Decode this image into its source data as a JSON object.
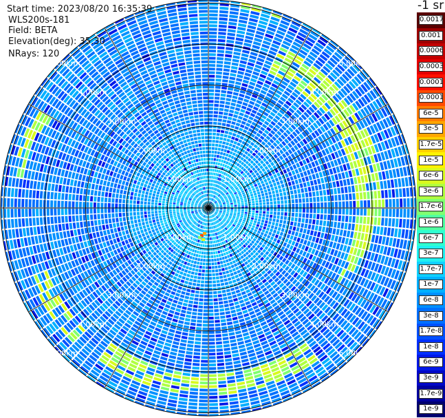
{
  "header": {
    "start_time": "Start time: 2023/08/20 16:35:39",
    "instrument": "WLS200s-181",
    "field": "Field: BETA",
    "elevation": "Elevation(deg): 35.30",
    "nrays": "NRays: 120"
  },
  "colorbar": {
    "unit": "-1 sr",
    "levels": [
      {
        "label": "0.0017",
        "color": "#5a0000"
      },
      {
        "label": "0.001",
        "color": "#9e0000"
      },
      {
        "label": "0.0006",
        "color": "#c40000"
      },
      {
        "label": "0.0003",
        "color": "#e40000"
      },
      {
        "label": "0.00017",
        "color": "#ff1000"
      },
      {
        "label": "0.0001",
        "color": "#ff4a00"
      },
      {
        "label": "6e-5",
        "color": "#ff7c00"
      },
      {
        "label": "3e-5",
        "color": "#ffa600"
      },
      {
        "label": "1.7e-5",
        "color": "#ffd000"
      },
      {
        "label": "1e-5",
        "color": "#fff200"
      },
      {
        "label": "6e-6",
        "color": "#d8fa20"
      },
      {
        "label": "3e-6",
        "color": "#b0ff40"
      },
      {
        "label": "1.7e-6",
        "color": "#80ff70"
      },
      {
        "label": "1e-6",
        "color": "#50ffa0"
      },
      {
        "label": "6e-7",
        "color": "#30ffd0"
      },
      {
        "label": "3e-7",
        "color": "#20f0f0"
      },
      {
        "label": "1.7e-7",
        "color": "#10d0ff"
      },
      {
        "label": "1e-7",
        "color": "#00b0ff"
      },
      {
        "label": "6e-8",
        "color": "#0090ff"
      },
      {
        "label": "3e-8",
        "color": "#0070ff"
      },
      {
        "label": "1.7e-8",
        "color": "#0050ff"
      },
      {
        "label": "1e-8",
        "color": "#0030ff"
      },
      {
        "label": "6e-9",
        "color": "#0018e8"
      },
      {
        "label": "3e-9",
        "color": "#0008c8"
      },
      {
        "label": "1.7e-9",
        "color": "#0000a0"
      },
      {
        "label": "1e-9",
        "color": "#000070"
      }
    ]
  },
  "chart_data": {
    "type": "heatmap",
    "projection": "polar PPI (plan position indicator)",
    "field": "BETA",
    "units": "-1 sr",
    "nrays": 120,
    "scale": "logarithmic",
    "range_rings_km": [
      1,
      2,
      3,
      4,
      5
    ],
    "ring_labels": [
      "1.00km",
      "2.00km",
      "3.00km",
      "4.00km",
      "5.00km"
    ],
    "max_range_km": 5.0,
    "spoke_step_deg": 30,
    "background_range": [
      "1e-8",
      "3e-7"
    ],
    "features": [
      {
        "description": "enhanced backscatter arc ~5 km range, east/north-east side",
        "approx_value": "3e-6"
      },
      {
        "description": "enhanced backscatter arc ~5 km range, south-east and south-west",
        "approx_value": "3e-6"
      },
      {
        "description": "small high-backscatter target ~0.5 km south-west of origin",
        "approx_value": "0.0001"
      }
    ]
  }
}
